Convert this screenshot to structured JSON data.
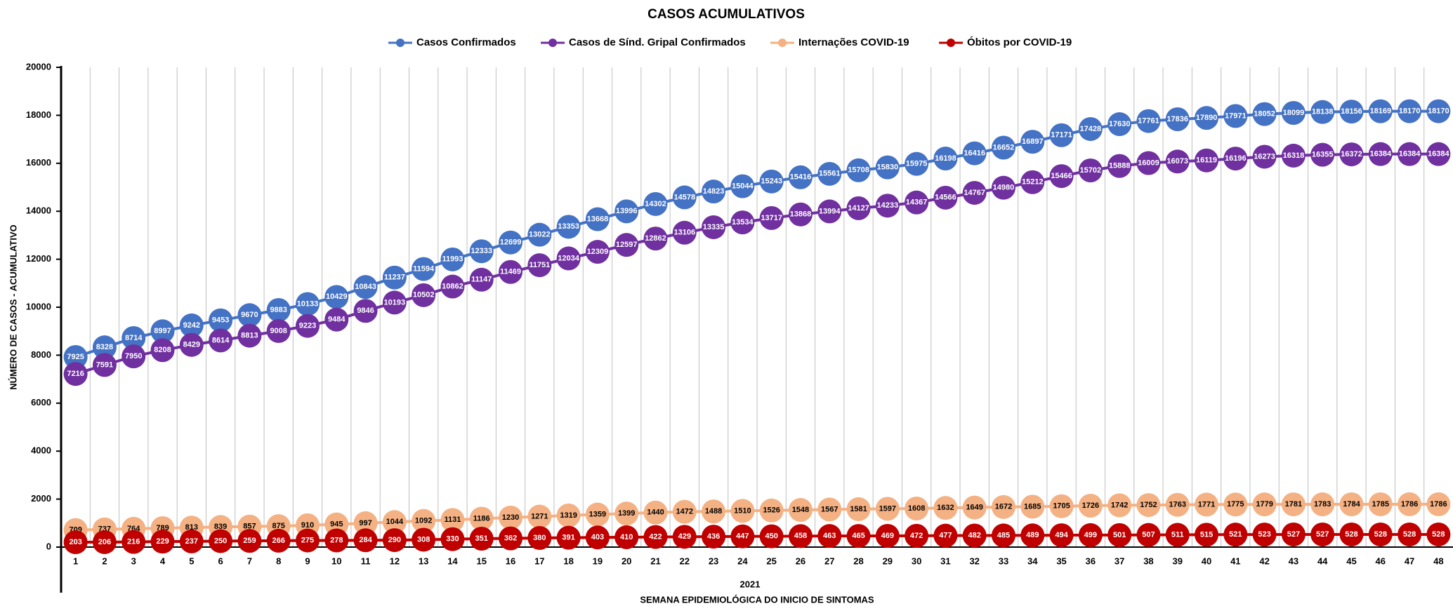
{
  "chart_data": {
    "type": "line",
    "title": "CASOS ACUMULATIVOS",
    "y_label": "NÚMERO DE CASOS - ACUMULATIVO",
    "x_group_label": "2021",
    "x_label": "SEMANA EPIDEMIOLÓGICA DO INICIO DE SINTOMAS",
    "categories": [
      "1",
      "2",
      "3",
      "4",
      "5",
      "6",
      "7",
      "8",
      "9",
      "10",
      "11",
      "12",
      "13",
      "14",
      "15",
      "16",
      "17",
      "18",
      "19",
      "20",
      "21",
      "22",
      "23",
      "24",
      "25",
      "26",
      "27",
      "28",
      "29",
      "30",
      "31",
      "32",
      "33",
      "34",
      "35",
      "36",
      "37",
      "38",
      "39",
      "40",
      "41",
      "42",
      "43",
      "44",
      "45",
      "46",
      "47",
      "48"
    ],
    "ylim": [
      0,
      20000
    ],
    "yticks": [
      0,
      2000,
      4000,
      6000,
      8000,
      10000,
      12000,
      14000,
      16000,
      18000,
      20000
    ],
    "grid": true,
    "legend": "top",
    "series": [
      {
        "name": "Casos Confirmados",
        "color": "#4472c4",
        "values": [
          7925,
          8328,
          8714,
          8997,
          9242,
          9453,
          9670,
          9883,
          10133,
          10429,
          10843,
          11237,
          11594,
          11993,
          12333,
          12699,
          13022,
          13353,
          13668,
          13996,
          14302,
          14578,
          14823,
          15044,
          15243,
          15416,
          15561,
          15708,
          15830,
          15975,
          16198,
          16416,
          16652,
          16897,
          17171,
          17428,
          17630,
          17761,
          17836,
          17890,
          17971,
          18052,
          18099,
          18138,
          18156,
          18169,
          18170,
          18170
        ]
      },
      {
        "name": "Casos de Sínd. Gripal Confirmados",
        "color": "#7030a0",
        "values": [
          7216,
          7591,
          7950,
          8208,
          8429,
          8614,
          8813,
          9008,
          9223,
          9484,
          9846,
          10193,
          10502,
          10862,
          11147,
          11469,
          11751,
          12034,
          12309,
          12597,
          12862,
          13106,
          13335,
          13534,
          13717,
          13868,
          13994,
          14127,
          14233,
          14367,
          14566,
          14767,
          14980,
          15212,
          15466,
          15702,
          15888,
          16009,
          16073,
          16119,
          16196,
          16273,
          16318,
          16355,
          16372,
          16384,
          16384,
          16384
        ]
      },
      {
        "name": "Internações COVID-19",
        "color": "#f4b183",
        "values": [
          709,
          737,
          764,
          789,
          813,
          839,
          857,
          875,
          910,
          945,
          997,
          1044,
          1092,
          1131,
          1186,
          1230,
          1271,
          1319,
          1359,
          1399,
          1440,
          1472,
          1488,
          1510,
          1526,
          1548,
          1567,
          1581,
          1597,
          1608,
          1632,
          1649,
          1672,
          1685,
          1705,
          1726,
          1742,
          1752,
          1763,
          1771,
          1775,
          1779,
          1781,
          1783,
          1784,
          1785,
          1786,
          1786
        ]
      },
      {
        "name": "Óbitos por COVID-19",
        "color": "#c00000",
        "values": [
          203,
          206,
          216,
          229,
          237,
          250,
          259,
          266,
          275,
          278,
          284,
          290,
          308,
          330,
          351,
          362,
          380,
          391,
          403,
          410,
          422,
          429,
          436,
          447,
          450,
          458,
          463,
          465,
          469,
          472,
          477,
          482,
          485,
          489,
          494,
          499,
          501,
          507,
          511,
          515,
          521,
          523,
          527,
          527,
          528,
          528,
          528,
          528
        ]
      }
    ]
  }
}
